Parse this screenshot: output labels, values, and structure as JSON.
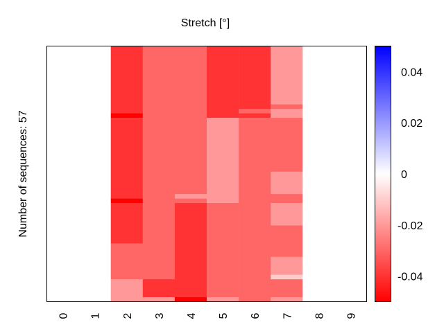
{
  "chart_data": {
    "type": "heatmap",
    "title": "Stretch [°]",
    "ylabel": "Number of sequences: 57",
    "xlabel": "",
    "n_rows": 57,
    "categories": [
      "0",
      "1",
      "2",
      "3",
      "4",
      "5",
      "6",
      "7",
      "8",
      "9"
    ],
    "value_range": [
      -0.05,
      0.05
    ],
    "colormap": {
      "low": "#ff0000",
      "mid": "#ffffff",
      "high": "#0000ff"
    },
    "colorbar_ticks": [
      {
        "value": 0.04,
        "label": "0.04"
      },
      {
        "value": 0.02,
        "label": "0.02"
      },
      {
        "value": 0,
        "label": "0"
      },
      {
        "value": -0.02,
        "label": "-0.02"
      },
      {
        "value": -0.04,
        "label": "-0.04"
      }
    ],
    "columns_runs_note": "each column listed top-to-bottom as [value, row_count] runs",
    "columns": [
      [
        [
          0,
          57
        ]
      ],
      [
        [
          0,
          57
        ]
      ],
      [
        [
          -0.04,
          15
        ],
        [
          -0.05,
          1
        ],
        [
          -0.04,
          18
        ],
        [
          -0.05,
          1
        ],
        [
          -0.04,
          9
        ],
        [
          -0.03,
          8
        ],
        [
          -0.02,
          5
        ]
      ],
      [
        [
          -0.03,
          52
        ],
        [
          -0.04,
          4
        ],
        [
          -0.02,
          1
        ]
      ],
      [
        [
          -0.03,
          33
        ],
        [
          -0.02,
          1
        ],
        [
          -0.03,
          1
        ],
        [
          -0.04,
          21
        ],
        [
          -0.05,
          1
        ]
      ],
      [
        [
          -0.04,
          16
        ],
        [
          -0.02,
          19
        ],
        [
          -0.03,
          21
        ],
        [
          -0.02,
          1
        ]
      ],
      [
        [
          -0.04,
          14
        ],
        [
          -0.03,
          1
        ],
        [
          -0.04,
          1
        ],
        [
          -0.03,
          41
        ]
      ],
      [
        [
          -0.02,
          13
        ],
        [
          -0.03,
          1
        ],
        [
          -0.02,
          2
        ],
        [
          -0.03,
          12
        ],
        [
          -0.02,
          5
        ],
        [
          -0.03,
          2
        ],
        [
          -0.02,
          5
        ],
        [
          -0.03,
          7
        ],
        [
          -0.02,
          4
        ],
        [
          -0.01,
          1
        ],
        [
          -0.03,
          4
        ],
        [
          -0.02,
          1
        ]
      ],
      [
        [
          0,
          57
        ]
      ],
      [
        [
          0,
          57
        ]
      ]
    ]
  }
}
